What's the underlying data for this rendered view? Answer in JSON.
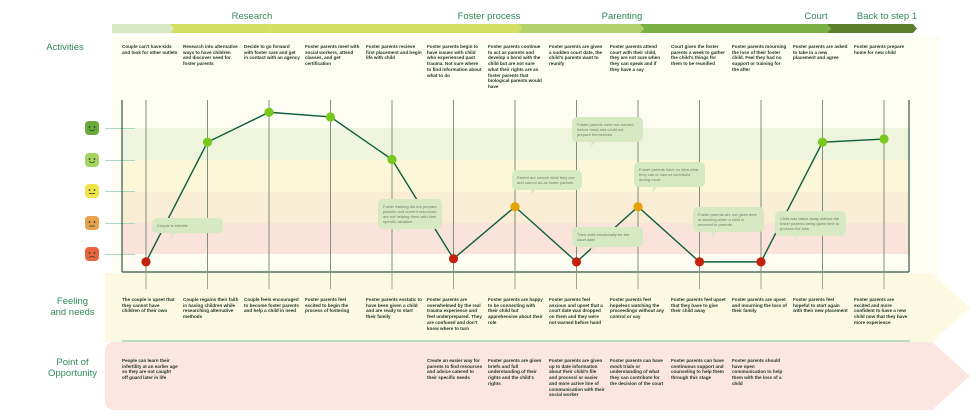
{
  "stages": [
    {
      "label": "Research",
      "color": "#d9e9c5"
    },
    {
      "label": "",
      "color": "#d3df62"
    },
    {
      "label": "Foster process",
      "color": "#b2d36c"
    },
    {
      "label": "Parenting",
      "color": "#7cb043"
    },
    {
      "label": "Court",
      "color": "#5b7f2a"
    }
  ],
  "stage_labels": {
    "research": "Research",
    "foster": "Foster process",
    "parenting": "Parenting",
    "court": "Court",
    "back": "Back to step 1"
  },
  "rows": {
    "activities": "Activities",
    "feelings": "Feeling\nand needs",
    "opportunity": "Point of\nOpportunity"
  },
  "activities": [
    "Couple can't have kids and look for other outlets",
    "Research into alternative ways to have children and discover need for foster parents",
    "Decide to go forward with foster care and get in contact with an agency",
    "Foster parents meet with social workers, attend classes, and get certification",
    "Foster parents recieve first placement and begin life with child",
    "Foster parents begin to have issues with child who experienced past trauma. Not sure where to find information about what to do",
    "Foster parents continue to act as parents and develop a bond with the child but are not sure what their rights are as foster parents that biological parents would have",
    "Foster parents are given a sudden court date, the child's parents want to reunify",
    "Foster parents attend court with their child, they are not sure when they can speak and if they have a say",
    "Court gives the foster parents a week to gather the child's things for them to be reunified",
    "Foster parents mourning the loss of their foster child. Feel they had no support or training for the after",
    "Foster parents are asked to take in a new placement and agree",
    "Foster parents prepare home for new child"
  ],
  "mood_scale": [
    {
      "name": "very-happy",
      "color": "#6aa83a"
    },
    {
      "name": "happy",
      "color": "#a6d35e"
    },
    {
      "name": "neutral",
      "color": "#f2e24a"
    },
    {
      "name": "unhappy",
      "color": "#e9a04a"
    },
    {
      "name": "very-unhappy",
      "color": "#e8643f"
    }
  ],
  "moods": [
    0.75,
    4.55,
    5.5,
    5.35,
    4.0,
    0.85,
    2.5,
    0.75,
    2.5,
    0.75,
    0.75,
    4.55,
    4.65
  ],
  "mood_colors": {
    "low": "#c4200c",
    "mid": "#e6a205",
    "high": "#78c81e"
  },
  "notes": [
    "Couple is infertile",
    "Foster training did not prepare parents and current resources are not helping them with their specific situation",
    "Parent are unsure what they can and cannot do as foster parents",
    "Foster parents were not warned before hand and could not prepare themselves",
    "Their child emotionally for the court date",
    "Foster parents have no idea what they can or cannot contribute during court",
    "Foster parents are not given time or warning when a child is returned to parents",
    "Child was taken away without the foster parents being given time to process the loss"
  ],
  "feelings": [
    "The couple is upset that they cannot have children of their own",
    "Couple regains their faith in having children while researching alternative methods",
    "Couple feels encouraged to become foster parents and help a child in need",
    "Foster parents feel excited to begin the process of fostering",
    "Foster parents exstatic to have been given a child and are ready to start their family",
    "Foster parents are overwhelmed by the real trauma experience and feel underprepared. They are confused and don't know where to turn",
    "Foster parents are happy to be connecting with their child but apprehensive about their role",
    "Foster parents feel anxious and upset that a court date was dropped on them and they were not warned before hand",
    "Foster parents feel hopeless watching the proceedings without any control or say",
    "Foster parents feel upset that they have to give their child away",
    "Foster parents are upset and mourning the loss of their family",
    "Foster parents feel hopeful to start again with their new placement",
    "Foster parents are excited and more confident to have a new child now that they have more experience"
  ],
  "opportunities": [
    "People can learn their infertility at an earlier age so they are not caught off guard later in life",
    "",
    "",
    "",
    "",
    "Create an easier way for parents to find resources and advice catered to their specific needs",
    "Foster parents are given briefs and full understanding of their rights and the child's rights",
    "Foster parents are given up to date information about their child's file and process/ or easier and more active line of communication with their social worker",
    "Foster parents can have mock trials or understanding of what they can contribute for the decision of the court",
    "Foster parents can have continuous support and counseling to help them through this stage",
    "Foster parents should have open communication to help them with the loss of a child",
    "",
    ""
  ]
}
